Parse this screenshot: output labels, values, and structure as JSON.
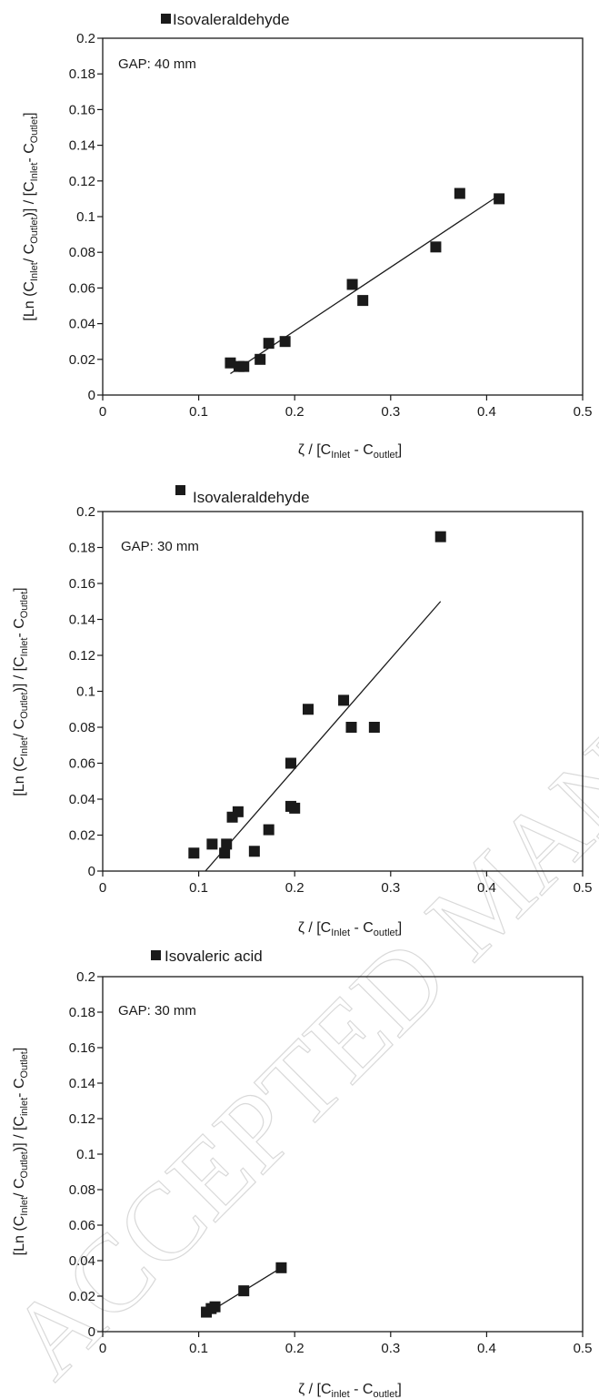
{
  "watermark": "ACCEPTED MANUSCRIPT",
  "chart_data": [
    {
      "type": "scatter",
      "legend": "Isovaleraldehyde",
      "annotation": "GAP: 40 mm",
      "ylabel_parts": [
        "[Ln (C",
        "Inlet",
        "/ C",
        "Outlet",
        ")] / [C",
        "Inlet",
        "- C",
        "Outlet",
        "]"
      ],
      "xlabel_parts": [
        "ζ / [C",
        "Inlet",
        " - C",
        "outlet",
        "]"
      ],
      "xlim": [
        0,
        0.5
      ],
      "ylim": [
        0,
        0.2
      ],
      "xticks": [
        "0",
        "0.1",
        "0.2",
        "0.3",
        "0.4",
        "0.5"
      ],
      "yticks": [
        "0",
        "0.02",
        "0.04",
        "0.06",
        "0.08",
        "0.1",
        "0.12",
        "0.14",
        "0.16",
        "0.18",
        "0.2"
      ],
      "points": [
        [
          0.133,
          0.018
        ],
        [
          0.142,
          0.016
        ],
        [
          0.147,
          0.016
        ],
        [
          0.164,
          0.02
        ],
        [
          0.173,
          0.029
        ],
        [
          0.19,
          0.03
        ],
        [
          0.26,
          0.062
        ],
        [
          0.271,
          0.053
        ],
        [
          0.347,
          0.083
        ],
        [
          0.372,
          0.113
        ],
        [
          0.413,
          0.11
        ]
      ],
      "fit_line": [
        [
          0.133,
          0.012
        ],
        [
          0.413,
          0.112
        ]
      ]
    },
    {
      "type": "scatter",
      "legend": "Isovaleraldehyde",
      "annotation": "GAP: 30 mm",
      "ylabel_parts": [
        "[Ln (C",
        "Inlet",
        "/ C",
        "Outlet",
        ")] / [C",
        "Inlet",
        "- C",
        "Outlet",
        "]"
      ],
      "xlabel_parts": [
        "ζ / [C",
        "Inlet",
        " - C",
        "outlet",
        "]"
      ],
      "xlim": [
        0,
        0.5
      ],
      "ylim": [
        0,
        0.2
      ],
      "xticks": [
        "0",
        "0.1",
        "0.2",
        "0.3",
        "0.4",
        "0.5"
      ],
      "yticks": [
        "0",
        "0.02",
        "0.04",
        "0.06",
        "0.08",
        "0.1",
        "0.12",
        "0.14",
        "0.16",
        "0.18",
        "0.2"
      ],
      "points": [
        [
          0.095,
          0.01
        ],
        [
          0.114,
          0.015
        ],
        [
          0.127,
          0.01
        ],
        [
          0.129,
          0.015
        ],
        [
          0.135,
          0.03
        ],
        [
          0.141,
          0.033
        ],
        [
          0.158,
          0.011
        ],
        [
          0.173,
          0.023
        ],
        [
          0.196,
          0.036
        ],
        [
          0.196,
          0.06
        ],
        [
          0.2,
          0.035
        ],
        [
          0.214,
          0.09
        ],
        [
          0.251,
          0.095
        ],
        [
          0.259,
          0.08
        ],
        [
          0.283,
          0.08
        ],
        [
          0.352,
          0.186
        ]
      ],
      "fit_line": [
        [
          0.107,
          0.0
        ],
        [
          0.352,
          0.15
        ]
      ]
    },
    {
      "type": "scatter",
      "legend": "Isovaleric acid",
      "annotation": "GAP: 30 mm",
      "ylabel_parts": [
        "[Ln (C",
        "Inlet",
        "/ C",
        "Outlet",
        ")] / [C",
        "inlet",
        "- C",
        "Outlet",
        "]"
      ],
      "xlabel_parts": [
        "ζ / [C",
        "inlet",
        " - C",
        "outlet",
        "]"
      ],
      "xlim": [
        0,
        0.5
      ],
      "ylim": [
        0,
        0.2
      ],
      "xticks": [
        "0",
        "0.1",
        "0.2",
        "0.3",
        "0.4",
        "0.5"
      ],
      "yticks": [
        "0",
        "0.02",
        "0.04",
        "0.06",
        "0.08",
        "0.1",
        "0.12",
        "0.14",
        "0.16",
        "0.18",
        "0.2"
      ],
      "points": [
        [
          0.108,
          0.011
        ],
        [
          0.113,
          0.013
        ],
        [
          0.117,
          0.014
        ],
        [
          0.147,
          0.023
        ],
        [
          0.186,
          0.036
        ]
      ],
      "fit_line": [
        [
          0.108,
          0.01
        ],
        [
          0.186,
          0.036
        ]
      ]
    }
  ]
}
